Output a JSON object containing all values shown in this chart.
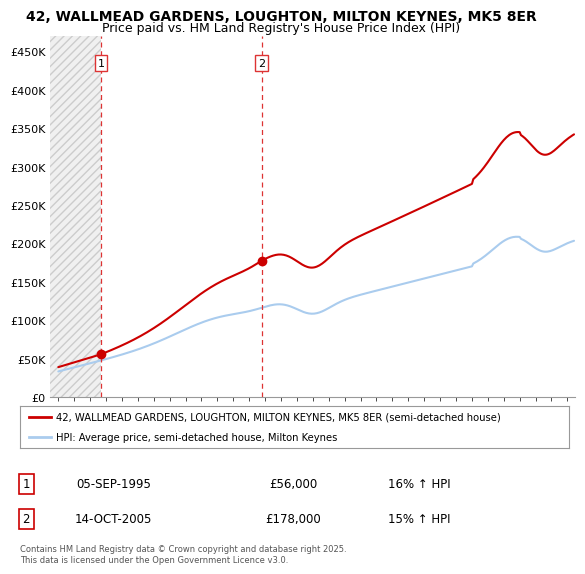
{
  "title": "42, WALLMEAD GARDENS, LOUGHTON, MILTON KEYNES, MK5 8ER",
  "subtitle": "Price paid vs. HM Land Registry's House Price Index (HPI)",
  "ylabel_ticks": [
    "£0",
    "£50K",
    "£100K",
    "£150K",
    "£200K",
    "£250K",
    "£300K",
    "£350K",
    "£400K",
    "£450K"
  ],
  "ytick_values": [
    0,
    50000,
    100000,
    150000,
    200000,
    250000,
    300000,
    350000,
    400000,
    450000
  ],
  "ylim": [
    0,
    470000
  ],
  "xlim_start": 1992.5,
  "xlim_end": 2025.5,
  "sale1_date": 1995.68,
  "sale1_price": 56000,
  "sale2_date": 2005.79,
  "sale2_price": 178000,
  "red_line_color": "#cc0000",
  "blue_line_color": "#aaccee",
  "point_color": "#cc0000",
  "vline_color": "#dd3333",
  "legend_line1": "42, WALLMEAD GARDENS, LOUGHTON, MILTON KEYNES, MK5 8ER (semi-detached house)",
  "legend_line2": "HPI: Average price, semi-detached house, Milton Keynes",
  "table_row1_num": "1",
  "table_row1_date": "05-SEP-1995",
  "table_row1_price": "£56,000",
  "table_row1_hpi": "16% ↑ HPI",
  "table_row2_num": "2",
  "table_row2_date": "14-OCT-2005",
  "table_row2_price": "£178,000",
  "table_row2_hpi": "15% ↑ HPI",
  "footer": "Contains HM Land Registry data © Crown copyright and database right 2025.\nThis data is licensed under the Open Government Licence v3.0.",
  "bg_color": "#ffffff",
  "grid_color": "#cccccc",
  "title_fontsize": 10,
  "subtitle_fontsize": 9,
  "tick_fontsize": 8
}
